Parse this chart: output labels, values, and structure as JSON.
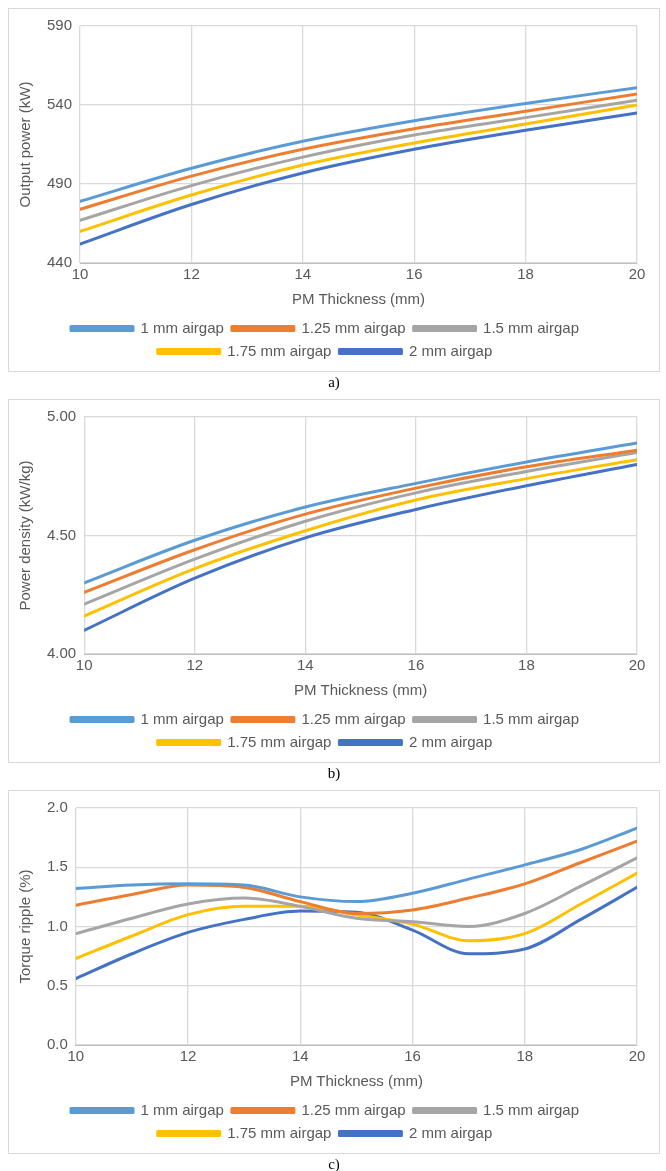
{
  "chart_data": [
    {
      "type": "line",
      "xlabel": "PM Thickness (mm)",
      "ylabel": "Output power (kW)",
      "annotations": [
        "a)"
      ],
      "xlim": [
        10,
        20
      ],
      "xticks": [
        10,
        12,
        14,
        16,
        18,
        20
      ],
      "ylim": [
        440,
        590
      ],
      "yticks": [
        440,
        490,
        540,
        590
      ],
      "grid": true,
      "legend": "bottom",
      "marker": "none",
      "line_style": "solid",
      "series": [
        {
          "name": "1 mm airgap",
          "color": "#5b9bd5",
          "x": [
            10,
            12,
            14,
            16,
            18,
            20
          ],
          "values": [
            479,
            500,
            517,
            530,
            541,
            551
          ]
        },
        {
          "name": "1.25 mm airgap",
          "color": "#ed7d31",
          "x": [
            10,
            12,
            14,
            16,
            18,
            20
          ],
          "values": [
            474,
            495,
            512,
            525,
            536,
            547
          ]
        },
        {
          "name": "1.5 mm airgap",
          "color": "#a5a5a5",
          "x": [
            10,
            12,
            14,
            16,
            18,
            20
          ],
          "values": [
            467,
            489,
            507,
            521,
            532,
            543
          ]
        },
        {
          "name": "1.75 mm airgap",
          "color": "#ffc000",
          "x": [
            10,
            12,
            14,
            16,
            18,
            20
          ],
          "values": [
            460,
            483,
            502,
            516,
            528,
            540
          ]
        },
        {
          "name": "2 mm airgap",
          "color": "#4472c4",
          "x": [
            10,
            12,
            14,
            16,
            18,
            20
          ],
          "values": [
            452,
            477,
            497,
            512,
            524,
            535
          ]
        }
      ]
    },
    {
      "type": "line",
      "xlabel": "PM Thickness (mm)",
      "ylabel": "Power density (kW/kg)",
      "annotations": [
        "b)"
      ],
      "xlim": [
        10,
        20
      ],
      "xticks": [
        10,
        12,
        14,
        16,
        18,
        20
      ],
      "ylim": [
        4,
        5
      ],
      "yticks": [
        {
          "value": 4,
          "label": "4.00"
        },
        {
          "value": 4.5,
          "label": "4.50"
        },
        {
          "value": 5,
          "label": "5.00"
        }
      ],
      "grid": true,
      "legend": "bottom",
      "marker": "none",
      "line_style": "solid",
      "series": [
        {
          "name": "1 mm airgap",
          "color": "#5b9bd5",
          "x": [
            10,
            12,
            14,
            16,
            18,
            20
          ],
          "values": [
            4.3,
            4.48,
            4.62,
            4.72,
            4.81,
            4.89
          ]
        },
        {
          "name": "1.25 mm airgap",
          "color": "#ed7d31",
          "x": [
            10,
            12,
            14,
            16,
            18,
            20
          ],
          "values": [
            4.26,
            4.44,
            4.59,
            4.7,
            4.79,
            4.86
          ]
        },
        {
          "name": "1.5 mm airgap",
          "color": "#a5a5a5",
          "x": [
            10,
            12,
            14,
            16,
            18,
            20
          ],
          "values": [
            4.21,
            4.4,
            4.56,
            4.68,
            4.77,
            4.85
          ]
        },
        {
          "name": "1.75 mm airgap",
          "color": "#ffc000",
          "x": [
            10,
            12,
            14,
            16,
            18,
            20
          ],
          "values": [
            4.16,
            4.36,
            4.52,
            4.65,
            4.74,
            4.82
          ]
        },
        {
          "name": "2 mm airgap",
          "color": "#4472c4",
          "x": [
            10,
            12,
            14,
            16,
            18,
            20
          ],
          "values": [
            4.1,
            4.32,
            4.49,
            4.61,
            4.71,
            4.8
          ]
        }
      ]
    },
    {
      "type": "line",
      "xlabel": "PM Thickness (mm)",
      "ylabel": "Torque ripple (%)",
      "annotations": [
        "c)"
      ],
      "xlim": [
        10,
        20
      ],
      "xticks": [
        10,
        12,
        14,
        16,
        18,
        20
      ],
      "ylim": [
        0,
        2
      ],
      "yticks": [
        {
          "value": 0,
          "label": "0.0"
        },
        {
          "value": 0.5,
          "label": "0.5"
        },
        {
          "value": 1,
          "label": "1.0"
        },
        {
          "value": 1.5,
          "label": "1.5"
        },
        {
          "value": 2,
          "label": "2.0"
        }
      ],
      "grid": true,
      "legend": "bottom",
      "marker": "none",
      "line_style": "solid",
      "series": [
        {
          "name": "1 mm airgap",
          "color": "#5b9bd5",
          "x": [
            10,
            11,
            12,
            13,
            14,
            15,
            16,
            17,
            18,
            19,
            20
          ],
          "values": [
            1.32,
            1.35,
            1.36,
            1.35,
            1.25,
            1.21,
            1.28,
            1.4,
            1.52,
            1.65,
            1.83
          ]
        },
        {
          "name": "1.25 mm airgap",
          "color": "#ed7d31",
          "x": [
            10,
            11,
            12,
            13,
            14,
            15,
            16,
            17,
            18,
            19,
            20
          ],
          "values": [
            1.18,
            1.27,
            1.35,
            1.33,
            1.21,
            1.11,
            1.14,
            1.24,
            1.36,
            1.54,
            1.72
          ]
        },
        {
          "name": "1.5 mm airgap",
          "color": "#a5a5a5",
          "x": [
            10,
            11,
            12,
            13,
            14,
            15,
            16,
            17,
            18,
            19,
            20
          ],
          "values": [
            0.94,
            1.07,
            1.19,
            1.24,
            1.17,
            1.07,
            1.04,
            1.0,
            1.11,
            1.34,
            1.58
          ]
        },
        {
          "name": "1.75 mm airgap",
          "color": "#ffc000",
          "x": [
            10,
            11,
            12,
            13,
            14,
            15,
            16,
            17,
            18,
            19,
            20
          ],
          "values": [
            0.73,
            0.92,
            1.1,
            1.17,
            1.17,
            1.1,
            1.02,
            0.88,
            0.94,
            1.19,
            1.45
          ]
        },
        {
          "name": "2 mm airgap",
          "color": "#4472c4",
          "x": [
            10,
            11,
            12,
            13,
            14,
            15,
            16,
            17,
            18,
            19,
            20
          ],
          "values": [
            0.56,
            0.77,
            0.95,
            1.06,
            1.13,
            1.12,
            0.97,
            0.77,
            0.81,
            1.06,
            1.33
          ]
        }
      ]
    }
  ]
}
